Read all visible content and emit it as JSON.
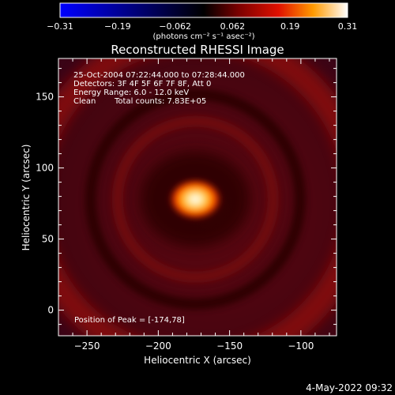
{
  "colorbar": {
    "tick_labels": [
      "-0.31",
      "-0.19",
      "-0.062",
      "0.062",
      "0.19",
      "0.31"
    ],
    "range": [
      -0.31,
      0.31
    ],
    "colormap": "red-temperature",
    "units_label": "(photons cm⁻² s⁻¹ asec⁻²)"
  },
  "title": "Reconstructed RHESSI Image",
  "annotations": {
    "time_range": "25-Oct-2004 07:22:44.000 to 07:28:44.000",
    "detectors": "Detectors: 3F 4F 5F 6F 7F 8F, Att 0",
    "energy": "Energy Range: 6.0 - 12.0 keV",
    "clean": "Clean",
    "total_counts": "Total counts: 7.83E+05",
    "peak_position": "Position of Peak = [-174,78]"
  },
  "footer": {
    "datetime": "4-May-2022 09:32"
  },
  "chart_data": {
    "type": "heatmap",
    "title": "Reconstructed RHESSI Image",
    "xlabel": "Heliocentric X (arcsec)",
    "ylabel": "Heliocentric Y (arcsec)",
    "xlim": [
      -270,
      -75
    ],
    "ylim": [
      -18,
      177
    ],
    "x_ticks": [
      -250,
      -200,
      -150,
      -100
    ],
    "y_ticks": [
      0,
      50,
      100,
      150
    ],
    "x_tick_labels": [
      "−250",
      "−200",
      "−150",
      "−100"
    ],
    "y_tick_labels": [
      "0",
      "50",
      "100",
      "150"
    ],
    "peak": {
      "x": -174,
      "y": 78
    },
    "ring_radius_arcsec": 70,
    "color_range": [
      -0.31,
      0.31
    ]
  }
}
